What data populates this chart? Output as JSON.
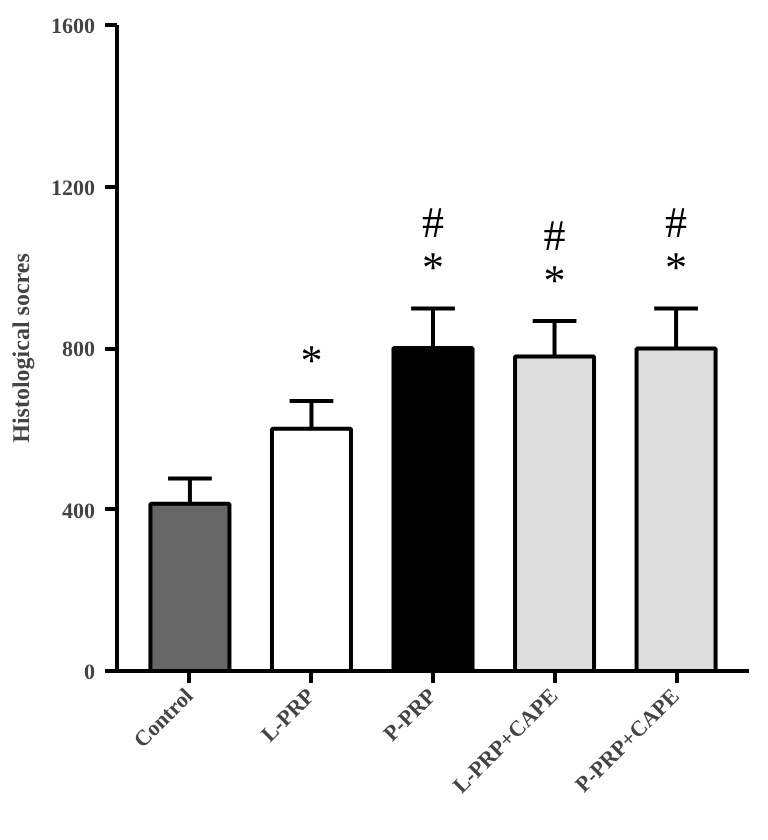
{
  "chart_data": {
    "type": "bar",
    "ylabel": "Histological socres",
    "categories": [
      "Control",
      "L-PRP",
      "P-PRP",
      "L-PRP+CAPE",
      "P-PRP+CAPE"
    ],
    "values": [
      414,
      600,
      800,
      779,
      799
    ],
    "errors": [
      63,
      69,
      98,
      88,
      99
    ],
    "colors": [
      "#666666",
      "#ffffff",
      "#000000",
      "#dddddd",
      "#dddddd"
    ],
    "ylim": [
      0,
      1600
    ],
    "yticks": [
      0,
      400,
      800,
      1200,
      1600
    ],
    "grid": false,
    "annotations": [
      "*",
      "#\n*",
      "#\n*",
      "#\n*"
    ]
  }
}
